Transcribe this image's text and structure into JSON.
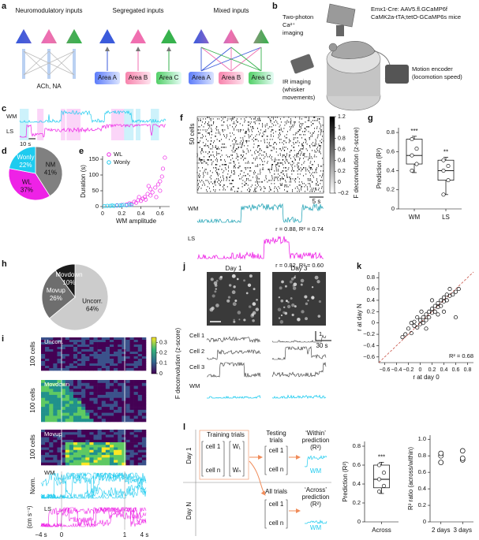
{
  "figure": {
    "panels": [
      "a",
      "b",
      "c",
      "d",
      "e",
      "f",
      "g",
      "h",
      "i",
      "j",
      "k",
      "l"
    ],
    "a": {
      "titles": [
        "Neuromodulatory inputs",
        "Segregated inputs",
        "Mixed inputs"
      ],
      "source": "ACh, NA",
      "areas_seg": [
        "Area A",
        "Area B",
        "Area C"
      ],
      "areas_mix": [
        "Area A",
        "Area B",
        "Area C"
      ]
    },
    "b": {
      "strain": [
        "Emx1-Cre: AAV5.fl.GCaMP6f",
        "CaMK2a-tTA;tetO-GCaMP6s mice"
      ],
      "imaging": [
        "Two-photon",
        "Ca²⁺",
        "imaging"
      ],
      "encoder": [
        "Motion encoder",
        "(locomotion speed)"
      ],
      "ir": [
        "IR imaging",
        "(whisker",
        "movements)"
      ]
    },
    "c": {
      "traces": [
        "WM",
        "LS"
      ],
      "scale": "10 s"
    },
    "f": {
      "cells": "50 cells",
      "scale": "5 s",
      "traces": [
        "WM",
        "LS"
      ],
      "stats": [
        "r = 0.88, R² = 0.74",
        "r = 0.82, R² = 0.60"
      ]
    },
    "i": {
      "groups": [
        "Uncorr.",
        "Movdown",
        "Movup"
      ],
      "cells": [
        "100 cells",
        "100 cells",
        "100 cells"
      ],
      "traces": [
        "WM",
        "LS"
      ],
      "units": [
        "Norm.",
        "(cm s⁻¹)"
      ],
      "times": [
        "−4 s",
        "0",
        "1",
        "4 s"
      ]
    },
    "j": {
      "days": [
        "Day 1",
        "Day 3"
      ],
      "cells": [
        "Cell 1",
        "Cell 2",
        "Cell 3",
        "WM"
      ],
      "scale_y": "1",
      "scale_x": "30 s"
    },
    "l": {
      "rows": [
        "Day 1",
        "Day N"
      ],
      "training": "Training trials",
      "testing": [
        "Testing",
        "trials"
      ],
      "all": "All trials",
      "within": [
        "‘Within’",
        "prediction",
        "(R²)"
      ],
      "across": [
        "‘Across’",
        "prediction",
        "(R²)"
      ],
      "matrix": [
        "cell 1",
        "cell n"
      ],
      "weights": [
        "W₁",
        "Wₙ"
      ],
      "wm": [
        "WM",
        "WM"
      ]
    }
  },
  "chart_data": [
    {
      "type": "pie",
      "categories": [
        "NM",
        "WL",
        "Wonly"
      ],
      "values": [
        41,
        37,
        22
      ],
      "value_labels": [
        "41%",
        "37%",
        "22%"
      ],
      "colors": [
        "#808080",
        "#ee22e6",
        "#1ecbef"
      ]
    },
    {
      "type": "scatter",
      "xlabel": "WM amplitude",
      "ylabel": "Duration (s)",
      "xlim": [
        0,
        0.7
      ],
      "xticks": [
        0,
        0.2,
        0.4,
        0.6
      ],
      "ylim": [
        0,
        160
      ],
      "yticks": [
        0,
        50,
        100,
        150
      ],
      "legend": "top-left",
      "series": [
        {
          "name": "WL",
          "color": "#ee22e6",
          "x": [
            0.15,
            0.2,
            0.25,
            0.28,
            0.3,
            0.33,
            0.35,
            0.37,
            0.4,
            0.42,
            0.44,
            0.45,
            0.47,
            0.5,
            0.5,
            0.52,
            0.55,
            0.56,
            0.58,
            0.6,
            0.6,
            0.62,
            0.63,
            0.65,
            0.48,
            0.38
          ],
          "y": [
            3,
            5,
            6,
            10,
            8,
            15,
            12,
            20,
            18,
            25,
            30,
            22,
            40,
            35,
            55,
            45,
            60,
            30,
            70,
            80,
            50,
            95,
            120,
            155,
            65,
            30
          ]
        },
        {
          "name": "Wonly",
          "color": "#1ecbef",
          "x": [
            0.02,
            0.05,
            0.08,
            0.1,
            0.12,
            0.15,
            0.18,
            0.2,
            0.22,
            0.25,
            0.28,
            0.3
          ],
          "y": [
            1,
            2,
            2,
            3,
            2,
            4,
            3,
            4,
            5,
            4,
            6,
            5
          ]
        }
      ]
    },
    {
      "type": "colorbar",
      "ylabel": "F deconvolution (z-score)",
      "ylim": [
        -0.2,
        1.2
      ],
      "yticks": [
        {
          "value": -0.2,
          "label": "−0.2"
        },
        0,
        0.2,
        0.4,
        0.6,
        0.8,
        1,
        {
          "value": 1.2,
          "label": "1.2"
        }
      ],
      "colors": [
        "#ffffff",
        "#000000"
      ]
    },
    {
      "type": "box",
      "ylabel": "Prediction (R²)",
      "categories": [
        "WM",
        "LS"
      ],
      "annotations": [
        "***",
        "**"
      ],
      "ylim": [
        0,
        0.85
      ],
      "yticks": [
        0,
        0.2,
        0.4,
        0.6,
        0.8
      ],
      "boxes": [
        {
          "min": 0.38,
          "q1": 0.47,
          "median": 0.56,
          "q3": 0.73,
          "max": 0.76
        },
        {
          "min": 0.15,
          "q1": 0.3,
          "median": 0.4,
          "q3": 0.51,
          "max": 0.54
        }
      ],
      "points": [
        [
          0.4,
          0.47,
          0.56,
          0.63,
          0.73
        ],
        [
          0.15,
          0.3,
          0.4,
          0.45,
          0.51
        ]
      ]
    },
    {
      "type": "pie",
      "categories": [
        "Uncorr.",
        "Movup",
        "Movdown"
      ],
      "values": [
        64,
        26,
        10
      ],
      "value_labels": [
        "64%",
        "26%",
        "10%"
      ],
      "colors": [
        "#cccccc",
        "#6e6e6e",
        "#1a1a1a"
      ]
    },
    {
      "type": "colorbar",
      "ylabel": "F deconvolution (z-score)",
      "ylim": [
        0,
        0.35
      ],
      "yticks": [
        0,
        0.1,
        0.2,
        0.3
      ],
      "colors": [
        "#440154",
        "#31688e",
        "#35b779",
        "#fde725"
      ]
    },
    {
      "type": "scatter",
      "xlabel": "r at day 0",
      "ylabel": "r at day N",
      "annotation": "R² = 0.68",
      "xlim": [
        -0.7,
        0.9
      ],
      "ylim": [
        -0.7,
        0.9
      ],
      "xticks": [
        {
          "value": -0.6,
          "label": "−0.6"
        },
        {
          "value": -0.4,
          "label": "−0.4"
        },
        {
          "value": -0.2,
          "label": "−0.2"
        },
        0,
        0.2,
        0.4,
        0.6,
        0.8
      ],
      "yticks": [
        {
          "value": -0.6,
          "label": "−0.6"
        },
        {
          "value": -0.4,
          "label": "−0.4"
        },
        {
          "value": -0.2,
          "label": "−0.2"
        },
        0,
        0.2,
        0.4,
        0.6,
        0.8
      ],
      "series": [
        {
          "color": "#000000",
          "x": [
            -0.25,
            -0.2,
            -0.15,
            -0.1,
            -0.1,
            -0.05,
            0,
            0,
            0.05,
            0.05,
            0.1,
            0.1,
            0.15,
            0.15,
            0.2,
            0.2,
            0.25,
            0.25,
            0.3,
            0.3,
            0.35,
            0.35,
            0.4,
            0.4,
            0.45,
            0.45,
            0.5,
            0.55,
            0.6,
            0.65,
            0.6,
            -0.3,
            0.1,
            0.2,
            0.3,
            -0.05,
            0.4,
            0.5,
            -0.15,
            0.02
          ],
          "y": [
            -0.2,
            -0.1,
            -0.18,
            -0.05,
            0.02,
            -0.08,
            0.05,
            -0.02,
            0.1,
            0,
            0.05,
            0.15,
            0.1,
            0.2,
            0.18,
            0.25,
            0.2,
            0.3,
            0.28,
            0.35,
            0.3,
            0.4,
            0.38,
            0.45,
            0.4,
            0.5,
            0.48,
            0.5,
            0.55,
            0.6,
            0.1,
            -0.25,
            -0.1,
            0.4,
            0.15,
            0.1,
            0.2,
            0.6,
            0,
            0.2
          ]
        }
      ]
    },
    {
      "type": "box",
      "ylabel": "Prediction (R²)",
      "categories": [
        "Across"
      ],
      "annotations": [
        "***"
      ],
      "ylim": [
        0,
        0.85
      ],
      "yticks": [
        0,
        0.2,
        0.4,
        0.6,
        0.8
      ],
      "boxes": [
        {
          "min": 0.3,
          "q1": 0.36,
          "median": 0.45,
          "q3": 0.6,
          "max": 0.63
        }
      ],
      "points": [
        [
          0.32,
          0.38,
          0.45,
          0.52,
          0.6
        ]
      ]
    },
    {
      "type": "dot",
      "ylabel": "R² ratio (across/within)",
      "categories": [
        "2 days",
        "3 days"
      ],
      "ylim": [
        0,
        1.05
      ],
      "yticks": [
        0,
        0.2,
        0.4,
        0.6,
        0.8,
        {
          "value": 1,
          "label": "1.0"
        }
      ],
      "values": [
        [
          0.72,
          0.8,
          0.83
        ],
        [
          0.75,
          0.77,
          0.86
        ]
      ]
    }
  ]
}
